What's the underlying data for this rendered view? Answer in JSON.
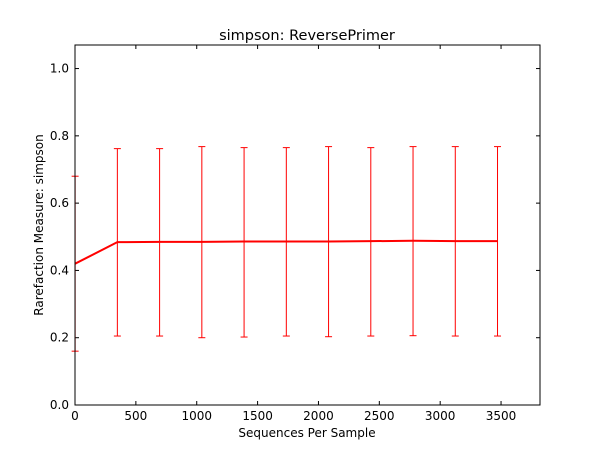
{
  "chart_data": {
    "type": "line",
    "title": "simpson: ReversePrimer",
    "xlabel": "Sequences Per Sample",
    "ylabel": "Rarefaction Measure: simpson",
    "xlim": [
      0,
      3820
    ],
    "ylim": [
      0.0,
      1.07
    ],
    "xticks": [
      0,
      500,
      1000,
      1500,
      2000,
      2500,
      3000,
      3500
    ],
    "xtick_labels": [
      "0",
      "500",
      "1000",
      "1500",
      "2000",
      "2500",
      "3000",
      "3500"
    ],
    "yticks": [
      0.0,
      0.2,
      0.4,
      0.6,
      0.8,
      1.0
    ],
    "ytick_labels": [
      "0.0",
      "0.2",
      "0.4",
      "0.6",
      "0.8",
      "1.0"
    ],
    "grid": false,
    "legend": "none",
    "series": [
      {
        "color": "#ff0000",
        "x": [
          1,
          348,
          695,
          1042,
          1389,
          1736,
          2083,
          2430,
          2777,
          3124,
          3471
        ],
        "y": [
          0.42,
          0.484,
          0.485,
          0.485,
          0.486,
          0.486,
          0.486,
          0.487,
          0.488,
          0.487,
          0.487
        ],
        "err_low": [
          0.16,
          0.205,
          0.205,
          0.2,
          0.202,
          0.205,
          0.203,
          0.205,
          0.206,
          0.205,
          0.205
        ],
        "err_high": [
          0.68,
          0.762,
          0.762,
          0.768,
          0.765,
          0.765,
          0.768,
          0.765,
          0.768,
          0.768,
          0.768
        ]
      }
    ]
  }
}
